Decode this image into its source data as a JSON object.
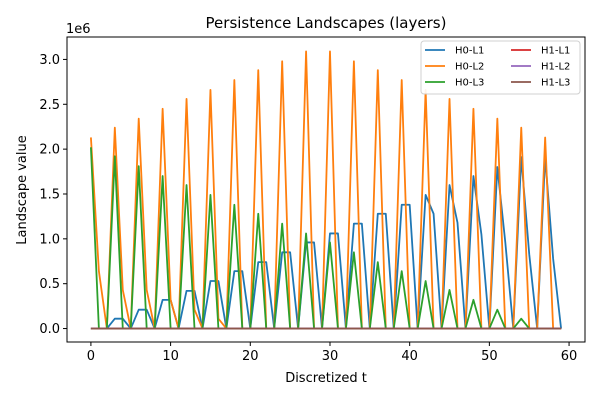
{
  "chart_data": {
    "type": "line",
    "title": "Persistence Landscapes (layers)",
    "xlabel": "Discretized t",
    "ylabel": "Landscape value",
    "y_offset_text": "1e6",
    "xlim": [
      -3,
      62
    ],
    "ylim": [
      -150000,
      3250000
    ],
    "xticks": [
      0,
      10,
      20,
      30,
      40,
      50,
      60
    ],
    "yticks": [
      0,
      500000,
      1000000,
      1500000,
      2000000,
      2500000,
      3000000
    ],
    "ytick_labels": [
      "0.0",
      "0.5",
      "1.0",
      "1.5",
      "2.0",
      "2.5",
      "3.0"
    ],
    "grid": false,
    "legend_position": "top-right",
    "legend_columns": 2,
    "x": [
      0,
      1,
      2,
      3,
      4,
      5,
      6,
      7,
      8,
      9,
      10,
      11,
      12,
      13,
      14,
      15,
      16,
      17,
      18,
      19,
      20,
      21,
      22,
      23,
      24,
      25,
      26,
      27,
      28,
      29,
      30,
      31,
      32,
      33,
      34,
      35,
      36,
      37,
      38,
      39,
      40,
      41,
      42,
      43,
      44,
      45,
      46,
      47,
      48,
      49,
      50,
      51,
      52,
      53,
      54,
      55,
      56,
      57,
      58,
      59
    ],
    "series": [
      {
        "name": "H0-L1",
        "color": "#1f77b4",
        "values": [
          0,
          0,
          0,
          110000,
          110000,
          0,
          210000,
          210000,
          0,
          320000,
          320000,
          0,
          420000,
          420000,
          0,
          530000,
          530000,
          0,
          640000,
          640000,
          0,
          740000,
          740000,
          0,
          850000,
          850000,
          0,
          960000,
          960000,
          0,
          1060000,
          1060000,
          0,
          1170000,
          1170000,
          0,
          1280000,
          1280000,
          0,
          1380000,
          1380000,
          0,
          1490000,
          1280000,
          0,
          1600000,
          1180000,
          0,
          1700000,
          1050000,
          0,
          1800000,
          960000,
          0,
          1910000,
          830000,
          0,
          1910000,
          780000,
          0
        ]
      },
      {
        "name": "H0-L2",
        "color": "#ff7f0e",
        "values": [
          2130000,
          640000,
          0,
          2240000,
          430000,
          0,
          2340000,
          430000,
          0,
          2450000,
          320000,
          0,
          2560000,
          210000,
          0,
          2660000,
          110000,
          0,
          2770000,
          0,
          0,
          2880000,
          0,
          0,
          2980000,
          0,
          0,
          3090000,
          0,
          0,
          3090000,
          0,
          0,
          2980000,
          0,
          0,
          2880000,
          0,
          0,
          2770000,
          0,
          0,
          2660000,
          0,
          0,
          2560000,
          0,
          0,
          2450000,
          0,
          0,
          2340000,
          0,
          0,
          2240000,
          0,
          0,
          2130000,
          0,
          0
        ]
      },
      {
        "name": "H0-L3",
        "color": "#2ca02c",
        "values": [
          2020000,
          0,
          0,
          1920000,
          0,
          0,
          1810000,
          0,
          0,
          1700000,
          0,
          0,
          1600000,
          0,
          0,
          1490000,
          0,
          0,
          1380000,
          0,
          0,
          1280000,
          0,
          0,
          1170000,
          0,
          0,
          1060000,
          0,
          0,
          960000,
          0,
          0,
          850000,
          0,
          0,
          740000,
          0,
          0,
          640000,
          0,
          0,
          530000,
          0,
          0,
          430000,
          0,
          0,
          320000,
          0,
          0,
          210000,
          0,
          0,
          110000,
          0,
          0,
          0,
          0,
          0
        ]
      },
      {
        "name": "H1-L1",
        "color": "#d62728",
        "values": [
          0,
          0,
          0,
          0,
          0,
          0,
          0,
          0,
          0,
          0,
          0,
          0,
          0,
          0,
          0,
          0,
          0,
          0,
          0,
          0,
          0,
          0,
          0,
          0,
          0,
          0,
          0,
          0,
          0,
          0,
          0,
          0,
          0,
          0,
          0,
          0,
          0,
          0,
          0,
          0,
          0,
          0,
          0,
          0,
          0,
          0,
          0,
          0,
          0,
          0,
          0,
          0,
          0,
          0,
          0,
          0,
          0,
          0,
          0,
          0
        ]
      },
      {
        "name": "H1-L2",
        "color": "#9467bd",
        "values": [
          0,
          0,
          0,
          0,
          0,
          0,
          0,
          0,
          0,
          0,
          0,
          0,
          0,
          0,
          0,
          0,
          0,
          0,
          0,
          0,
          0,
          0,
          0,
          0,
          0,
          0,
          0,
          0,
          0,
          0,
          0,
          0,
          0,
          0,
          0,
          0,
          0,
          0,
          0,
          0,
          0,
          0,
          0,
          0,
          0,
          0,
          0,
          0,
          0,
          0,
          0,
          0,
          0,
          0,
          0,
          0,
          0,
          0,
          0,
          0
        ]
      },
      {
        "name": "H1-L3",
        "color": "#8c564b",
        "values": [
          0,
          0,
          0,
          0,
          0,
          0,
          0,
          0,
          0,
          0,
          0,
          0,
          0,
          0,
          0,
          0,
          0,
          0,
          0,
          0,
          0,
          0,
          0,
          0,
          0,
          0,
          0,
          0,
          0,
          0,
          0,
          0,
          0,
          0,
          0,
          0,
          0,
          0,
          0,
          0,
          0,
          0,
          0,
          0,
          0,
          0,
          0,
          0,
          0,
          0,
          0,
          0,
          0,
          0,
          0,
          0,
          0,
          0,
          0,
          0
        ]
      }
    ]
  }
}
